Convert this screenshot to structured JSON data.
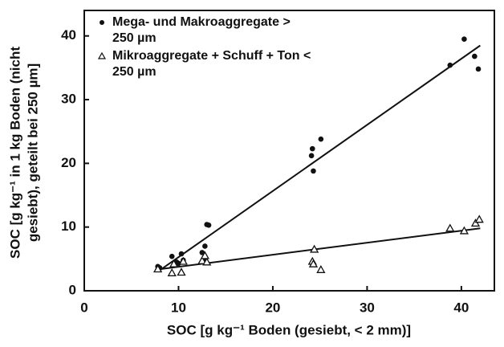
{
  "chart_data": {
    "type": "scatter",
    "x_label": "SOC [g kg⁻¹ Boden (gesiebt, < 2 mm)]",
    "y_label": [
      "SOC [g kg⁻¹ in 1 kg Boden (nicht",
      "gesiebt), geteilt bei 250 µm]"
    ],
    "xlim": [
      0,
      43.5
    ],
    "xticks": [
      0,
      10,
      20,
      30,
      40
    ],
    "ylim": [
      0,
      44
    ],
    "yticks": [
      0,
      10,
      20,
      30,
      40
    ],
    "series": [
      {
        "name": "Mega- und Makroaggregate > 250 µm",
        "marker": "dot",
        "color": "#111111",
        "x": [
          7.8,
          8,
          9.3,
          9.8,
          10.3,
          10.5,
          10,
          12.5,
          12.8,
          13,
          13.2,
          12.7,
          24.2,
          24.1,
          24.3,
          25.1,
          38.8,
          40.3,
          41.4,
          41.8
        ],
        "values": [
          3.8,
          3.6,
          5.4,
          4.5,
          5.8,
          4.8,
          4.3,
          6,
          7,
          10.4,
          10.3,
          5,
          22.3,
          21.2,
          18.8,
          23.8,
          35.4,
          39.5,
          36.8,
          34.8
        ],
        "fit": {
          "x": [
            8,
            42
          ],
          "values": [
            3.2,
            38.5
          ]
        }
      },
      {
        "name": "Mikroaggregate + Schuff + Ton < 250 µm",
        "marker": "triangle",
        "color": "#111111",
        "x": [
          7.8,
          9.3,
          9.5,
          10.3,
          10.5,
          12.5,
          13,
          12.8,
          24.2,
          24.3,
          24.4,
          25.1,
          38.8,
          40.3,
          41.5,
          41.9
        ],
        "values": [
          3.4,
          2.8,
          4.2,
          2.9,
          4.6,
          4.7,
          4.5,
          5.5,
          4.6,
          4.2,
          6.5,
          3.3,
          9.8,
          9.4,
          10.6,
          11.2
        ],
        "fit": {
          "x": [
            7.5,
            42
          ],
          "values": [
            3.3,
            9.8
          ]
        }
      }
    ]
  }
}
